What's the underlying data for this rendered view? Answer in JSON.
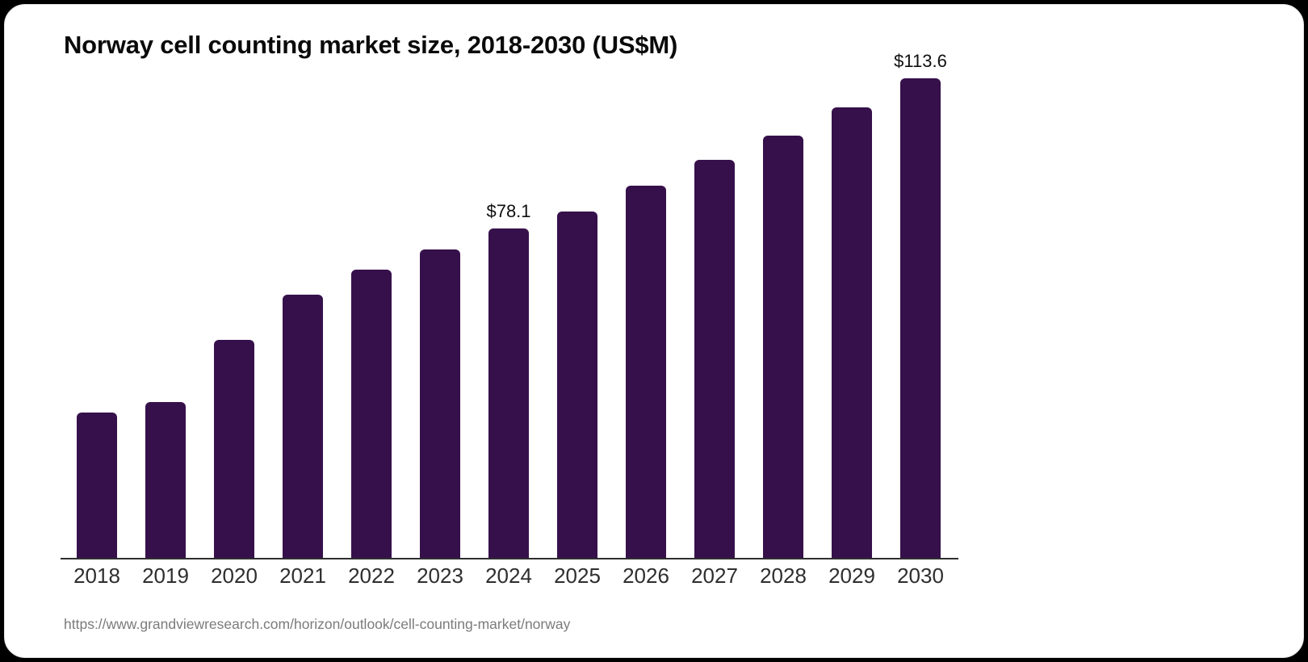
{
  "chart_data": {
    "type": "bar",
    "title": "Norway cell counting market size, 2018-2030 (US$M)",
    "categories": [
      "2018",
      "2019",
      "2020",
      "2021",
      "2022",
      "2023",
      "2024",
      "2025",
      "2026",
      "2027",
      "2028",
      "2029",
      "2030"
    ],
    "values": [
      34.5,
      37.0,
      51.7,
      62.3,
      68.3,
      73.0,
      78.1,
      82.0,
      88.2,
      94.2,
      100.1,
      106.7,
      113.6
    ],
    "data_labels": {
      "2024": "$78.1",
      "2030": "$113.6"
    },
    "xlabel": "",
    "ylabel": "",
    "ylim": [
      0,
      113.6
    ],
    "grid": false,
    "legend": "none",
    "bar_color": "#36104B",
    "axis_color": "#2e2e2e"
  },
  "source": {
    "url": "https://www.grandviewresearch.com/horizon/outlook/cell-counting-market/norway"
  }
}
